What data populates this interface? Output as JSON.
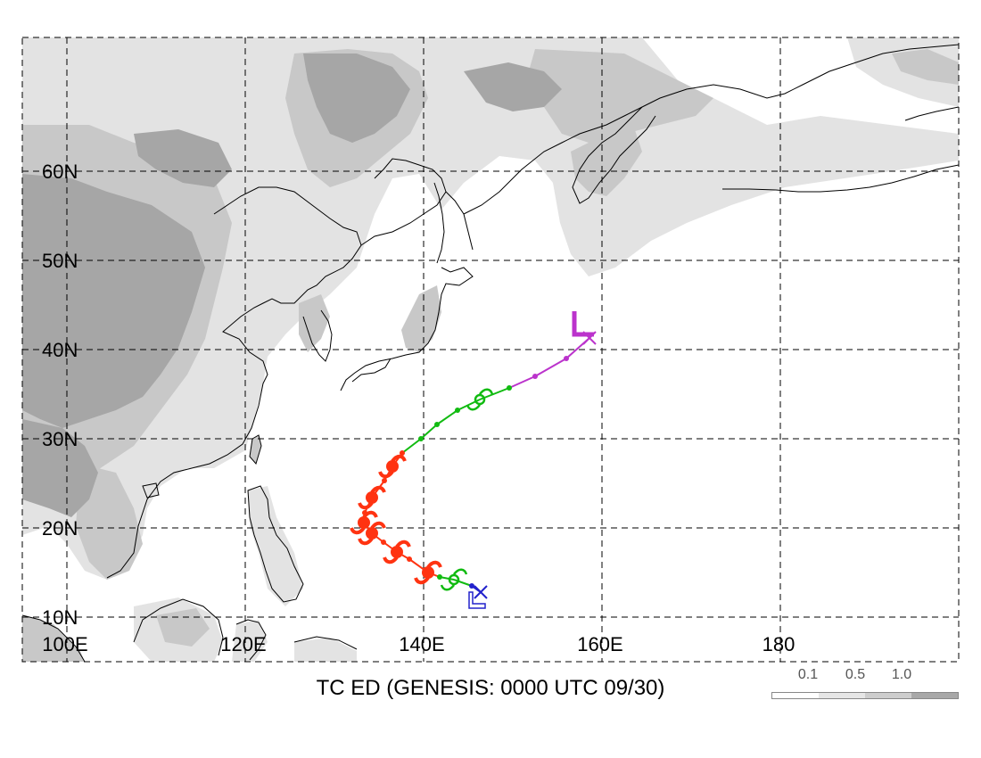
{
  "title": "TC ED (GENESIS: 0000 UTC 09/30)",
  "lon_labels": [
    "100E",
    "120E",
    "140E",
    "160E",
    "180"
  ],
  "lat_labels": [
    "10N",
    "20N",
    "30N",
    "40N",
    "50N",
    "60N"
  ],
  "legend": {
    "labels": [
      "0.1",
      "0.5",
      "1.0"
    ],
    "colors": [
      "#ffffff",
      "#e6e6e6",
      "#cdcdcd",
      "#a8a8a8"
    ]
  },
  "colors": {
    "depression": "#2222cc",
    "storm": "#11bb11",
    "typhoon": "#ff3311",
    "extratropical": "#bb33cc",
    "shade_light": "#e3e3e3",
    "shade_mid": "#c8c8c8",
    "shade_dark": "#a6a6a6"
  },
  "map_extent": {
    "lon_min": 95,
    "lon_max": 200,
    "lat_min": 5,
    "lat_max": 75
  },
  "track": [
    {
      "lon": 146.4,
      "lat": 12.8,
      "stage": "depression",
      "symbol": "x"
    },
    {
      "lon": 145.4,
      "lat": 13.5,
      "stage": "depression"
    },
    {
      "lon": 143.4,
      "lat": 14.2,
      "stage": "storm",
      "symbol": "storm"
    },
    {
      "lon": 141.8,
      "lat": 14.5,
      "stage": "storm"
    },
    {
      "lon": 140.5,
      "lat": 15.0,
      "stage": "typhoon",
      "symbol": "typhoon"
    },
    {
      "lon": 138.4,
      "lat": 16.5,
      "stage": "typhoon"
    },
    {
      "lon": 137.0,
      "lat": 17.3,
      "stage": "typhoon",
      "symbol": "typhoon"
    },
    {
      "lon": 135.5,
      "lat": 18.4,
      "stage": "typhoon"
    },
    {
      "lon": 134.2,
      "lat": 19.4,
      "stage": "typhoon",
      "symbol": "typhoon"
    },
    {
      "lon": 133.3,
      "lat": 20.6,
      "stage": "typhoon",
      "symbol": "typhoon"
    },
    {
      "lon": 133.4,
      "lat": 21.7,
      "stage": "typhoon"
    },
    {
      "lon": 134.2,
      "lat": 23.4,
      "stage": "typhoon",
      "symbol": "typhoon"
    },
    {
      "lon": 135.6,
      "lat": 25.3,
      "stage": "typhoon"
    },
    {
      "lon": 136.5,
      "lat": 26.9,
      "stage": "typhoon",
      "symbol": "typhoon"
    },
    {
      "lon": 137.6,
      "lat": 28.4,
      "stage": "typhoon"
    },
    {
      "lon": 139.7,
      "lat": 30.0,
      "stage": "storm"
    },
    {
      "lon": 141.5,
      "lat": 31.6,
      "stage": "storm"
    },
    {
      "lon": 143.8,
      "lat": 33.2,
      "stage": "storm"
    },
    {
      "lon": 146.3,
      "lat": 34.4,
      "stage": "storm",
      "symbol": "storm"
    },
    {
      "lon": 149.6,
      "lat": 35.7,
      "stage": "storm"
    },
    {
      "lon": 152.5,
      "lat": 37.0,
      "stage": "extratropical"
    },
    {
      "lon": 156.0,
      "lat": 39.0,
      "stage": "extratropical"
    },
    {
      "lon": 158.6,
      "lat": 41.3,
      "stage": "extratropical",
      "symbol": "x"
    }
  ],
  "markers": [
    {
      "lon": 145.9,
      "lat": 12.8,
      "stage": "depression",
      "symbol": "L"
    },
    {
      "lon": 157.7,
      "lat": 41.7,
      "stage": "extratropical",
      "symbol": "L"
    }
  ]
}
